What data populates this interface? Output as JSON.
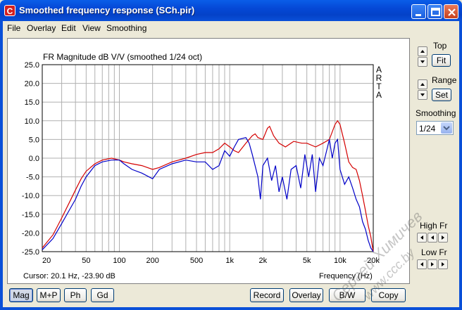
{
  "window": {
    "title": "Smoothed frequency response (SCh.pir)",
    "app_icon_letter": "C"
  },
  "menu": {
    "items": [
      {
        "label": "File",
        "underline_index": 0
      },
      {
        "label": "Overlay",
        "underline_index": 0
      },
      {
        "label": "Edit",
        "underline_index": 0
      },
      {
        "label": "View",
        "underline_index": 0
      },
      {
        "label": "Smoothing",
        "underline_index": 0
      }
    ]
  },
  "plot": {
    "side_label": [
      "A",
      "R",
      "T",
      "A"
    ],
    "cursor_readout": "Cursor: 20.1 Hz, -23.90 dB"
  },
  "right_panel": {
    "top_label": "Top",
    "fit_label": "Fit",
    "range_label": "Range",
    "set_label": "Set",
    "smoothing_label": "Smoothing",
    "smoothing_value": "1/24",
    "high_fr_label": "High Fr",
    "low_fr_label": "Low Fr"
  },
  "bottom_buttons": {
    "mag": "Mag",
    "mp": "M+P",
    "ph": "Ph",
    "gd": "Gd",
    "record": "Record",
    "overlay": "Overlay",
    "bw": "B/W",
    "copy": "Copy"
  },
  "watermark": {
    "line1": "Сергей Химичев",
    "line2": "www.ccc.by"
  },
  "colors": {
    "red_series": "#d40000",
    "blue_series": "#0000c8",
    "grid": "#b0b0b0"
  },
  "chart_data": {
    "type": "line",
    "title": "FR Magnitude dB V/V (smoothed 1/24 oct)",
    "xlabel": "Frequency (Hz)",
    "ylabel": "",
    "xscale": "log",
    "xlim": [
      20,
      20000
    ],
    "ylim": [
      -25,
      25
    ],
    "x_ticks": [
      20,
      50,
      100,
      200,
      500,
      1000,
      2000,
      5000,
      10000,
      20000
    ],
    "x_tick_labels": [
      "20",
      "50",
      "100",
      "200",
      "500",
      "1k",
      "2k",
      "5k",
      "10k",
      "20k"
    ],
    "y_ticks": [
      25,
      20,
      15,
      10,
      5,
      0,
      -5,
      -10,
      -15,
      -20,
      -25
    ],
    "y_tick_labels": [
      "25.0",
      "20.0",
      "15.0",
      "10.0",
      "5.0",
      "0.0",
      "-5.0",
      "-10.0",
      "-15.0",
      "-20.0",
      "-25.0"
    ],
    "grid": true,
    "series": [
      {
        "color": "#d40000",
        "points": [
          [
            20,
            -24
          ],
          [
            25,
            -20.5
          ],
          [
            30,
            -16
          ],
          [
            35,
            -12
          ],
          [
            40,
            -8.5
          ],
          [
            45,
            -5.5
          ],
          [
            50,
            -3.5
          ],
          [
            60,
            -1.5
          ],
          [
            70,
            -0.5
          ],
          [
            85,
            0
          ],
          [
            100,
            -0.5
          ],
          [
            110,
            -1
          ],
          [
            130,
            -1.5
          ],
          [
            160,
            -2
          ],
          [
            200,
            -3
          ],
          [
            230,
            -2.5
          ],
          [
            300,
            -1
          ],
          [
            400,
            0
          ],
          [
            500,
            1
          ],
          [
            600,
            1.5
          ],
          [
            700,
            1.5
          ],
          [
            800,
            2.5
          ],
          [
            900,
            4
          ],
          [
            1000,
            3
          ],
          [
            1100,
            2
          ],
          [
            1200,
            1.5
          ],
          [
            1400,
            4
          ],
          [
            1600,
            6
          ],
          [
            1700,
            6.5
          ],
          [
            1800,
            5.5
          ],
          [
            2000,
            5
          ],
          [
            2200,
            8
          ],
          [
            2300,
            8.5
          ],
          [
            2500,
            6
          ],
          [
            2800,
            4
          ],
          [
            3200,
            3
          ],
          [
            3800,
            4.5
          ],
          [
            4500,
            4
          ],
          [
            5000,
            4
          ],
          [
            6000,
            3
          ],
          [
            7000,
            4
          ],
          [
            8000,
            5
          ],
          [
            9000,
            9
          ],
          [
            9500,
            10
          ],
          [
            10000,
            9
          ],
          [
            11000,
            4
          ],
          [
            12000,
            -1
          ],
          [
            13000,
            -2.5
          ],
          [
            14000,
            -3
          ],
          [
            15000,
            -6
          ],
          [
            16000,
            -10
          ],
          [
            17000,
            -14
          ],
          [
            18000,
            -18
          ],
          [
            19000,
            -21
          ],
          [
            20000,
            -25
          ]
        ]
      },
      {
        "color": "#0000c8",
        "points": [
          [
            20,
            -24.5
          ],
          [
            25,
            -21.5
          ],
          [
            30,
            -17.5
          ],
          [
            35,
            -14
          ],
          [
            40,
            -11
          ],
          [
            45,
            -7.5
          ],
          [
            50,
            -5
          ],
          [
            60,
            -2
          ],
          [
            70,
            -1
          ],
          [
            85,
            -0.5
          ],
          [
            100,
            -0.5
          ],
          [
            110,
            -1.5
          ],
          [
            130,
            -3
          ],
          [
            160,
            -4
          ],
          [
            200,
            -5.5
          ],
          [
            230,
            -3
          ],
          [
            300,
            -1.5
          ],
          [
            400,
            -0.5
          ],
          [
            500,
            -1
          ],
          [
            600,
            -1
          ],
          [
            700,
            -3
          ],
          [
            800,
            -2
          ],
          [
            900,
            2
          ],
          [
            1000,
            0.5
          ],
          [
            1100,
            3
          ],
          [
            1200,
            5
          ],
          [
            1400,
            5.5
          ],
          [
            1500,
            4
          ],
          [
            1600,
            1
          ],
          [
            1800,
            -5
          ],
          [
            1900,
            -11
          ],
          [
            2000,
            -2
          ],
          [
            2200,
            0
          ],
          [
            2400,
            -6
          ],
          [
            2600,
            -2
          ],
          [
            2800,
            -9
          ],
          [
            3000,
            -5
          ],
          [
            3300,
            -11
          ],
          [
            3600,
            -3
          ],
          [
            4000,
            -2
          ],
          [
            4400,
            -8
          ],
          [
            4800,
            1
          ],
          [
            5200,
            -5
          ],
          [
            5600,
            1
          ],
          [
            6000,
            -9
          ],
          [
            6500,
            0
          ],
          [
            7000,
            -2
          ],
          [
            8000,
            5
          ],
          [
            8500,
            0
          ],
          [
            9000,
            4
          ],
          [
            9500,
            5
          ],
          [
            10000,
            -3
          ],
          [
            11000,
            -7
          ],
          [
            12000,
            -5
          ],
          [
            13000,
            -8
          ],
          [
            14000,
            -11
          ],
          [
            15000,
            -13
          ],
          [
            16000,
            -17
          ],
          [
            17000,
            -19
          ],
          [
            18000,
            -22
          ],
          [
            19000,
            -24
          ],
          [
            20000,
            -25
          ]
        ]
      }
    ]
  }
}
